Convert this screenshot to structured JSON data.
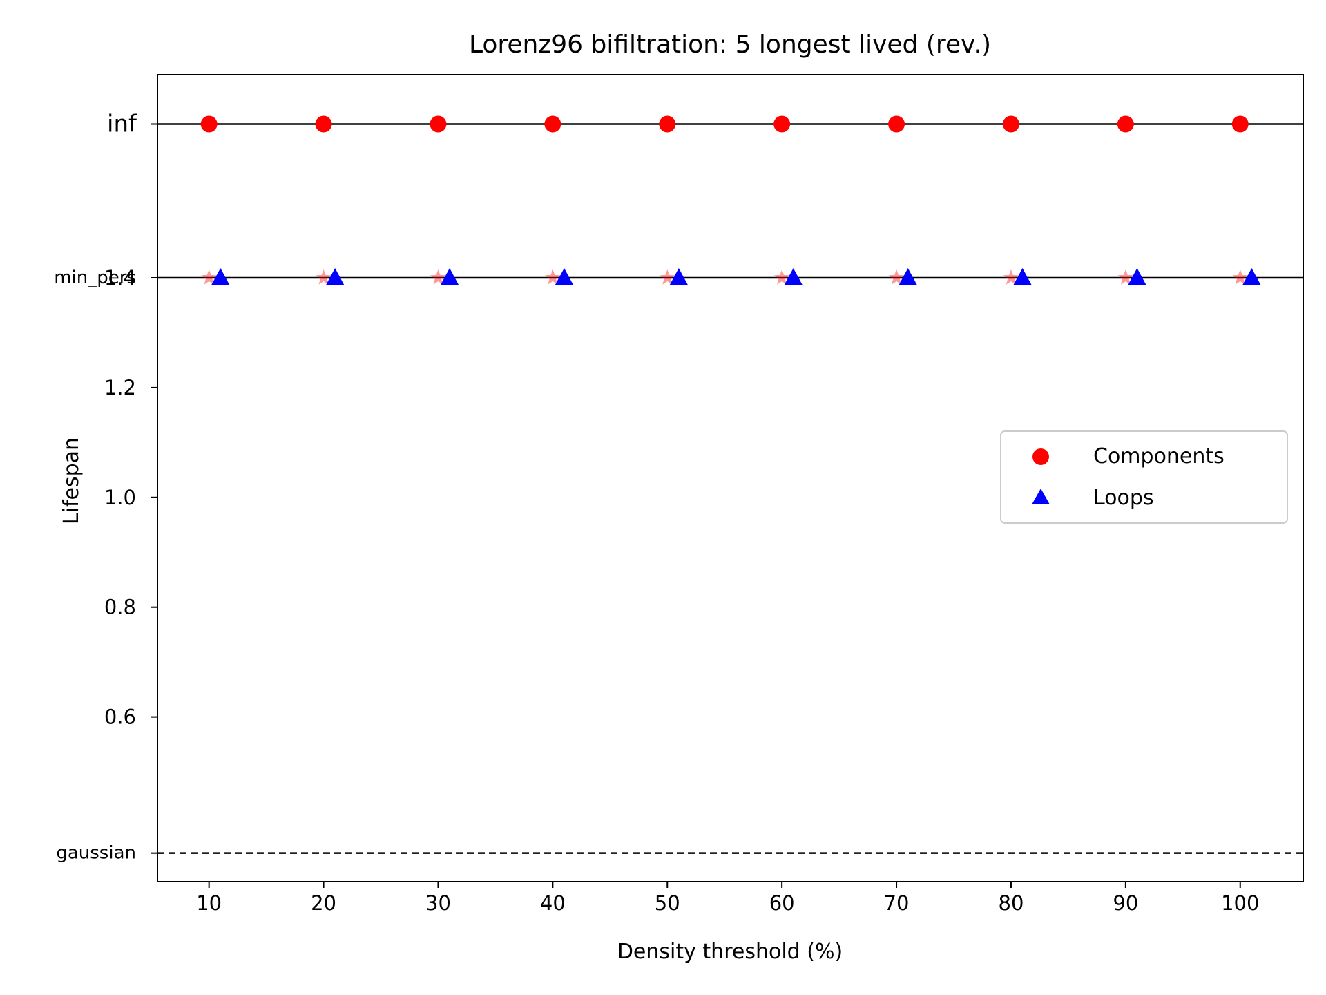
{
  "chart_data": {
    "type": "scatter",
    "title": "Lorenz96 bifiltration: 5 longest lived (rev.)",
    "xlabel": "Density threshold (%)",
    "ylabel": "Lifespan",
    "xlim": [
      5.5,
      105.5
    ],
    "ylim": [
      0.3,
      1.77
    ],
    "x_ticks": [
      10,
      20,
      30,
      40,
      50,
      60,
      70,
      80,
      90,
      100
    ],
    "y_ticks": [
      0.6,
      0.8,
      1.0,
      1.2,
      1.4
    ],
    "y_tick_labels": [
      "0.6",
      "0.8",
      "1.0",
      "1.2",
      "1.4"
    ],
    "special_lines": [
      {
        "label": "inf",
        "y": 1.68,
        "style": "solid"
      },
      {
        "label": "min_pers",
        "y": 1.4,
        "style": "solid"
      },
      {
        "label": "gaussian",
        "y": 0.352,
        "style": "dashed"
      }
    ],
    "series": [
      {
        "name": "Components",
        "marker": "circle",
        "color": "#ff0000",
        "x": [
          10,
          20,
          30,
          40,
          50,
          60,
          70,
          80,
          90,
          100
        ],
        "y": [
          1.68,
          1.68,
          1.68,
          1.68,
          1.68,
          1.68,
          1.68,
          1.68,
          1.68,
          1.68
        ]
      },
      {
        "marker": "star",
        "color": "#ff0000",
        "alpha": 0.4,
        "x": [
          10,
          20,
          30,
          40,
          50,
          60,
          70,
          80,
          90,
          100
        ],
        "y": [
          1.4,
          1.4,
          1.4,
          1.4,
          1.4,
          1.4,
          1.4,
          1.4,
          1.4,
          1.4
        ]
      },
      {
        "name": "Loops",
        "marker": "triangle",
        "color": "#0000ff",
        "x": [
          11,
          21,
          31,
          41,
          51,
          61,
          71,
          81,
          91,
          101
        ],
        "y": [
          1.4,
          1.4,
          1.4,
          1.4,
          1.4,
          1.4,
          1.4,
          1.4,
          1.4,
          1.4
        ]
      }
    ],
    "legend": {
      "position": "center-right",
      "entries": [
        {
          "label": "Components",
          "marker": "circle",
          "color": "#ff0000"
        },
        {
          "label": "Loops",
          "marker": "triangle",
          "color": "#0000ff"
        }
      ]
    },
    "grid": false
  }
}
